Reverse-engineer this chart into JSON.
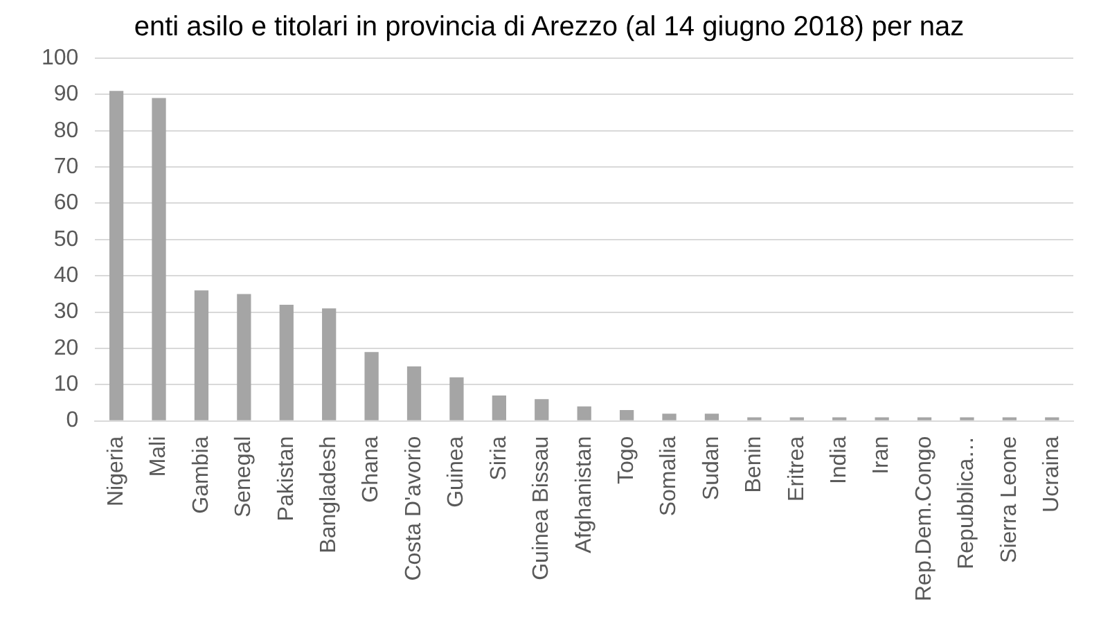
{
  "chart_data": {
    "type": "bar",
    "title": "enti asilo e titolari in provincia di Arezzo (al 14 giugno 2018) per naz",
    "categories": [
      "Nigeria",
      "Mali",
      "Gambia",
      "Senegal",
      "Pakistan",
      "Bangladesh",
      "Ghana",
      "Costa D'avorio",
      "Guinea",
      "Siria",
      "Guinea Bissau",
      "Afghanistan",
      "Togo",
      "Somalia",
      "Sudan",
      "Benin",
      "Eritrea",
      "India",
      "Iran",
      "Rep.Dem.Congo",
      "Repubblica…",
      "Sierra Leone",
      "Ucraina"
    ],
    "values": [
      91,
      89,
      36,
      35,
      32,
      31,
      19,
      15,
      12,
      7,
      6,
      4,
      3,
      2,
      2,
      1,
      1,
      1,
      1,
      1,
      1,
      1,
      1
    ],
    "color": "#a5a5a5",
    "ylim": [
      0,
      100
    ],
    "yticks": [
      0,
      10,
      20,
      30,
      40,
      50,
      60,
      70,
      80,
      90,
      100
    ],
    "grid": "y",
    "legend": false
  }
}
